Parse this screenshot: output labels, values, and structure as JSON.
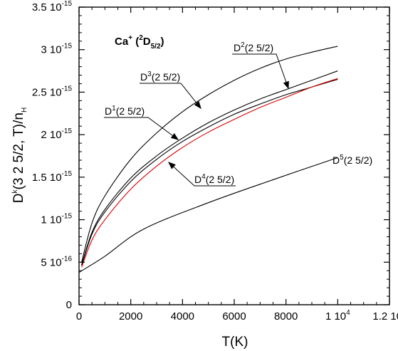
{
  "chart_data": {
    "type": "line",
    "xlabel": "T(K)",
    "ylabel": {
      "main": "D",
      "sup": "k",
      "mid": "(3 2  5/2, T)/n",
      "sub": "H"
    },
    "xlim": [
      0,
      12000
    ],
    "ylim": [
      0,
      3.5e-15
    ],
    "grid": false,
    "xticks": [
      {
        "value": 0,
        "label": "0",
        "sup": ""
      },
      {
        "value": 2000,
        "label": "2000",
        "sup": ""
      },
      {
        "value": 4000,
        "label": "4000",
        "sup": ""
      },
      {
        "value": 6000,
        "label": "6000",
        "sup": ""
      },
      {
        "value": 8000,
        "label": "8000",
        "sup": ""
      },
      {
        "value": 10000,
        "label": "1 10",
        "sup": "4"
      },
      {
        "value": 12000,
        "label": "1.2 10",
        "sup": "4"
      }
    ],
    "yticks": [
      {
        "value": 0,
        "label": "0",
        "sup": ""
      },
      {
        "value": 5e-16,
        "label": "5 10",
        "sup": "-16"
      },
      {
        "value": 1e-15,
        "label": "1 10",
        "sup": "-15"
      },
      {
        "value": 1.5e-15,
        "label": "1.5 10",
        "sup": "-15"
      },
      {
        "value": 2e-15,
        "label": "2 10",
        "sup": "-15"
      },
      {
        "value": 2.5e-15,
        "label": "2.5 10",
        "sup": "-15"
      },
      {
        "value": 3e-15,
        "label": "3 10",
        "sup": "-15"
      },
      {
        "value": 3.5e-15,
        "label": "3.5 10",
        "sup": "-15"
      }
    ],
    "title_parts": [
      "Ca",
      "+",
      " (",
      "2",
      "D",
      "5/2",
      ")"
    ],
    "series": [
      {
        "name": "D2(2 5/2)",
        "color": "#000000",
        "x": [
          100,
          500,
          1000,
          2000,
          3000,
          4000,
          5000,
          6000,
          7000,
          8000,
          9000,
          10000
        ],
        "y": [
          5e-16,
          9.6e-16,
          1.28e-15,
          1.71e-15,
          2.02e-15,
          2.27e-15,
          2.47e-15,
          2.64e-15,
          2.78e-15,
          2.89e-15,
          2.97e-15,
          3.04e-15
        ]
      },
      {
        "name": "D3(2 5/2)",
        "color": "#000000",
        "x": [
          100,
          500,
          1000,
          2000,
          3000,
          4000,
          5000,
          6000,
          7000,
          8000,
          9000,
          10000
        ],
        "y": [
          4.7e-16,
          8.5e-16,
          1.12e-15,
          1.49e-15,
          1.75e-15,
          1.96e-15,
          2.14e-15,
          2.29e-15,
          2.42e-15,
          2.53e-15,
          2.64e-15,
          2.75e-15
        ]
      },
      {
        "name": "D1(2 5/2)",
        "color": "#000000",
        "x": [
          100,
          500,
          1000,
          2000,
          3000,
          4000,
          5000,
          6000,
          7000,
          8000,
          9000,
          10000
        ],
        "y": [
          4.6e-16,
          8.3e-16,
          1.09e-15,
          1.45e-15,
          1.71e-15,
          1.92e-15,
          2.09e-15,
          2.24e-15,
          2.36e-15,
          2.47e-15,
          2.56e-15,
          2.65e-15
        ]
      },
      {
        "name": "D4(2 5/2)",
        "color": "#d40000",
        "x": [
          100,
          500,
          1000,
          2000,
          3000,
          4000,
          5000,
          6000,
          7000,
          8000,
          9000,
          10000
        ],
        "y": [
          4.4e-16,
          7.6e-16,
          1e-15,
          1.36e-15,
          1.63e-15,
          1.85e-15,
          2.03e-15,
          2.18e-15,
          2.32e-15,
          2.44e-15,
          2.56e-15,
          2.66e-15
        ]
      },
      {
        "name": "D5(2 5/2)",
        "color": "#000000",
        "x": [
          0,
          1000,
          2500,
          5000,
          7500,
          10000
        ],
        "y": [
          3.8e-16,
          5.7e-16,
          8.9e-16,
          1.2e-15,
          1.47e-15,
          1.73e-15
        ]
      }
    ],
    "annotations": [
      {
        "base": "D",
        "sup": "2",
        "rest": "(2 5/2)"
      },
      {
        "base": "D",
        "sup": "3",
        "rest": "(2 5/2)"
      },
      {
        "base": "D",
        "sup": "1",
        "rest": "(2 5/2)"
      },
      {
        "base": "D",
        "sup": "4",
        "rest": "(2 5/2)"
      },
      {
        "base": "D",
        "sup": "5",
        "rest": "(2 5/2)"
      }
    ]
  }
}
